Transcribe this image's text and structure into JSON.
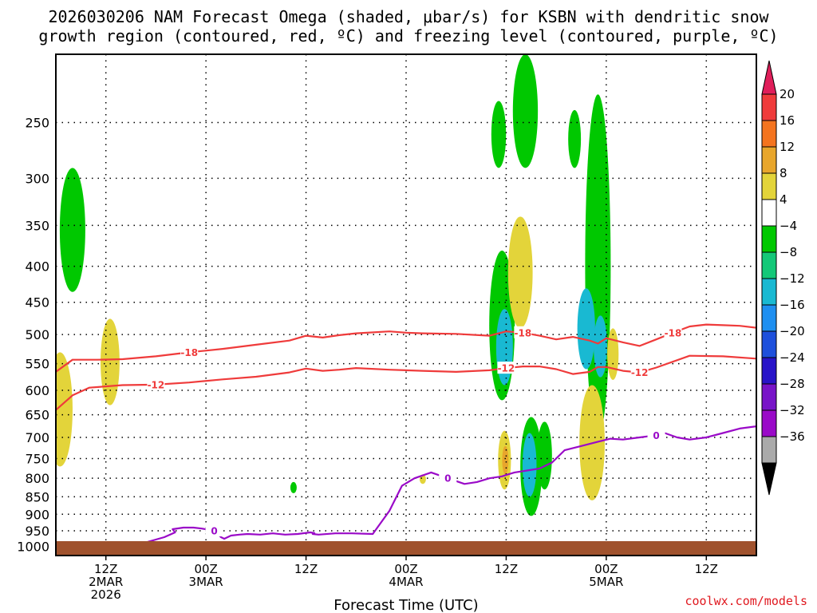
{
  "title": {
    "line1": "2026030206 NAM Forecast Omega (shaded, μbar/s) for KSBN with dendritic snow",
    "line2": "growth region (contoured, red, ºC) and freezing level (contoured, purple, ºC)"
  },
  "credit": "coolwx.com/models",
  "chart_data": {
    "type": "heatmap",
    "title": "2026030206 NAM Forecast Omega (shaded, μbar/s) for KSBN with dendritic snow growth region (contoured, red, ºC) and freezing level (contoured, purple, ºC)",
    "xlabel": "Forecast Time (UTC)",
    "ylabel": "",
    "x_range_hours": [
      0,
      84
    ],
    "y_range_hpa": [
      200,
      1030
    ],
    "y_scale": "log",
    "grid": true,
    "y_ticks": [
      250,
      300,
      350,
      400,
      450,
      500,
      550,
      600,
      650,
      700,
      750,
      800,
      850,
      900,
      950,
      1000
    ],
    "x_ticks": [
      {
        "hour": 6,
        "lines": [
          "12Z",
          "2MAR",
          "2026"
        ]
      },
      {
        "hour": 18,
        "lines": [
          "00Z",
          "3MAR"
        ]
      },
      {
        "hour": 30,
        "lines": [
          "12Z"
        ]
      },
      {
        "hour": 42,
        "lines": [
          "00Z",
          "4MAR"
        ]
      },
      {
        "hour": 54,
        "lines": [
          "12Z"
        ]
      },
      {
        "hour": 66,
        "lines": [
          "00Z",
          "5MAR"
        ]
      },
      {
        "hour": 78,
        "lines": [
          "12Z"
        ]
      }
    ],
    "colorbar": {
      "labels": [
        "20",
        "16",
        "12",
        "8",
        "4",
        "−4",
        "−8",
        "−12",
        "−16",
        "−20",
        "−24",
        "−28",
        "−32",
        "−36"
      ],
      "colors": [
        "#e01e5a",
        "#ef3b3b",
        "#f4741f",
        "#e8a62c",
        "#e3d43a",
        "#ffffff",
        "#00c800",
        "#14c878",
        "#19b9d2",
        "#1e8ff0",
        "#1e50dc",
        "#2814c8",
        "#7814c8",
        "#9a0ac8",
        "#aaaaaa",
        "#000000"
      ]
    },
    "omega_features": [
      {
        "hour": 0.5,
        "p_top": 530,
        "p_bottom": 770,
        "value": 4
      },
      {
        "hour": 6.5,
        "p_top": 475,
        "p_bottom": 630,
        "value": 4
      },
      {
        "hour": 2.0,
        "p_top": 290,
        "p_bottom": 435,
        "value": -6
      },
      {
        "hour": 28.5,
        "p_top": 810,
        "p_bottom": 840,
        "value": -6
      },
      {
        "hour": 44.0,
        "p_top": 790,
        "p_bottom": 815,
        "value": 4
      },
      {
        "hour": 53.5,
        "p_top": 380,
        "p_bottom": 620,
        "value": -6
      },
      {
        "hour": 53.8,
        "p_top": 460,
        "p_bottom": 590,
        "value": -13
      },
      {
        "hour": 53.8,
        "p_top": 685,
        "p_bottom": 830,
        "value": 5
      },
      {
        "hour": 53.9,
        "p_top": 720,
        "p_bottom": 790,
        "value": 10
      },
      {
        "hour": 55.7,
        "p_top": 340,
        "p_bottom": 490,
        "value": 5
      },
      {
        "hour": 56.3,
        "p_top": 200,
        "p_bottom": 290,
        "value": -6
      },
      {
        "hour": 53.1,
        "p_top": 233,
        "p_bottom": 290,
        "value": -6
      },
      {
        "hour": 57.0,
        "p_top": 655,
        "p_bottom": 905,
        "value": -6
      },
      {
        "hour": 56.8,
        "p_top": 690,
        "p_bottom": 850,
        "value": -13
      },
      {
        "hour": 58.6,
        "p_top": 665,
        "p_bottom": 830,
        "value": -6
      },
      {
        "hour": 62.2,
        "p_top": 240,
        "p_bottom": 290,
        "value": -6
      },
      {
        "hour": 65.0,
        "p_top": 228,
        "p_bottom": 700,
        "value": -6
      },
      {
        "hour": 63.6,
        "p_top": 430,
        "p_bottom": 560,
        "value": -13
      },
      {
        "hour": 65.3,
        "p_top": 470,
        "p_bottom": 575,
        "value": -13
      },
      {
        "hour": 66.8,
        "p_top": 490,
        "p_bottom": 580,
        "value": 4
      },
      {
        "hour": 64.3,
        "p_top": 590,
        "p_bottom": 860,
        "value": 4
      }
    ],
    "series": [
      {
        "name": "-18",
        "x": [
          0,
          2,
          5,
          8,
          12,
          16,
          20,
          24,
          28,
          30,
          32,
          34,
          36,
          40,
          42,
          44,
          48,
          52,
          54,
          56,
          58,
          60,
          62,
          64,
          65,
          66,
          68,
          70,
          72,
          74,
          76,
          78,
          80,
          82,
          84
        ],
        "y": [
          565,
          543,
          543,
          542,
          537,
          530,
          524,
          517,
          510,
          502,
          505,
          501,
          498,
          495,
          497,
          498,
          499,
          502,
          495,
          497,
          502,
          508,
          504,
          510,
          515,
          506,
          513,
          519,
          508,
          497,
          487,
          484,
          485,
          486,
          489
        ]
      },
      {
        "name": "-12",
        "x": [
          0,
          2,
          4,
          8,
          12,
          16,
          20,
          24,
          28,
          30,
          32,
          34,
          36,
          40,
          44,
          48,
          52,
          54,
          56,
          58,
          60,
          62,
          64,
          65,
          66,
          68,
          70,
          72,
          76,
          80,
          84
        ],
        "y": [
          640,
          610,
          595,
          590,
          589,
          585,
          579,
          574,
          566,
          559,
          563,
          561,
          558,
          561,
          563,
          565,
          562,
          558,
          555,
          555,
          560,
          569,
          565,
          556,
          556,
          563,
          566,
          557,
          536,
          537,
          541
        ]
      },
      {
        "name": "0",
        "x": [
          11.0,
          13.0,
          14.3,
          14.0,
          15.3,
          16.5,
          17.5,
          19.0,
          19.8,
          20.2,
          21.0,
          22.0,
          23.0,
          24.5,
          26.0,
          27.5,
          29.0,
          30.5,
          31.0,
          30.8,
          31.5,
          33.5,
          35.5,
          38.0,
          40.0,
          41.5,
          43.0,
          45.0,
          47.0,
          49.0,
          50.5,
          52.0,
          53.5,
          54.2,
          55.0,
          56.5,
          58.0,
          59.5,
          61.0,
          63.0,
          65.0,
          66.5,
          68.0,
          70.0,
          72.0,
          73.0,
          74.5,
          76.0,
          78.0,
          80.0,
          82.0,
          84.0
        ],
        "y": [
          985,
          970,
          955,
          945,
          940,
          940,
          943,
          950,
          970,
          975,
          965,
          962,
          960,
          962,
          958,
          962,
          960,
          955,
          957,
          960,
          962,
          958,
          958,
          960,
          890,
          820,
          800,
          785,
          800,
          815,
          810,
          800,
          795,
          790,
          785,
          780,
          775,
          760,
          730,
          720,
          710,
          703,
          705,
          700,
          695,
          690,
          700,
          705,
          700,
          690,
          680,
          675
        ]
      }
    ]
  }
}
